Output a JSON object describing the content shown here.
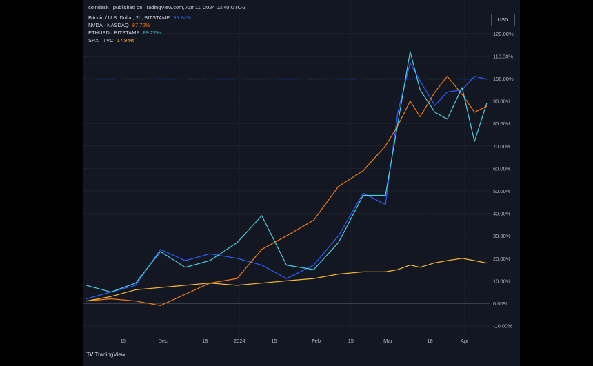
{
  "header": {
    "publisher": "coindesk_ published on TradingView.com, Apr 11, 2024 03:40 UTC-3"
  },
  "currency_button": "USD",
  "branding": {
    "logo": "TV",
    "name": "TradingView"
  },
  "chart_data": {
    "type": "line",
    "title": "",
    "xlabel": "",
    "ylabel": "",
    "ylim": [
      -13,
      125
    ],
    "y_ticks": [
      "120.00%",
      "110.00%",
      "100.00%",
      "90.00%",
      "80.00%",
      "70.00%",
      "60.00%",
      "50.00%",
      "40.00%",
      "30.00%",
      "20.00%",
      "10.00%",
      "0.00%",
      "-10.00%"
    ],
    "x_ticks": [
      "15",
      "Dec",
      "18",
      "2024",
      "15",
      "Feb",
      "15",
      "Mar",
      "18",
      "Apr"
    ],
    "x": [
      "2023-10-31",
      "2023-11-10",
      "2023-11-20",
      "2023-11-30",
      "2023-12-10",
      "2023-12-20",
      "2023-12-31",
      "2024-01-10",
      "2024-01-20",
      "2024-01-31",
      "2024-02-10",
      "2024-02-20",
      "2024-02-29",
      "2024-03-05",
      "2024-03-10",
      "2024-03-14",
      "2024-03-20",
      "2024-03-25",
      "2024-03-31",
      "2024-04-05",
      "2024-04-10"
    ],
    "grid": true,
    "legend": "top-left",
    "series": [
      {
        "name": "Bitcoin / U.S. Dollar, 2h, BITSTAMP",
        "percent_label": "99.74%",
        "color": "#2962ff",
        "values": [
          2,
          5,
          8,
          24,
          19,
          22,
          20,
          17,
          11,
          17,
          30,
          49,
          44,
          85,
          107,
          99,
          88,
          94,
          95,
          101,
          99.7
        ]
      },
      {
        "name": "NVDA · NASDAQ",
        "percent_label": "87.70%",
        "color": "#f57c17",
        "values": [
          1,
          2,
          1,
          -1,
          4,
          9,
          11,
          24,
          30,
          37,
          52,
          59,
          70,
          79,
          90,
          83,
          94,
          101,
          93,
          85,
          87.7
        ]
      },
      {
        "name": "ETHUSD · BITSTAMP",
        "percent_label": "89.22%",
        "color": "#4dd0e1",
        "values": [
          8,
          5,
          9,
          23,
          16,
          19,
          27,
          39,
          17,
          15,
          27,
          48,
          48,
          80,
          112,
          95,
          85,
          82,
          96,
          72,
          89.2
        ]
      },
      {
        "name": "SPX · TVC",
        "percent_label": "17.94%",
        "color": "#f9b934",
        "values": [
          1,
          3,
          6,
          7,
          8,
          9,
          8,
          9,
          10,
          11,
          13,
          14,
          14,
          15,
          17,
          16,
          18,
          19,
          20,
          19,
          17.9
        ]
      }
    ]
  }
}
